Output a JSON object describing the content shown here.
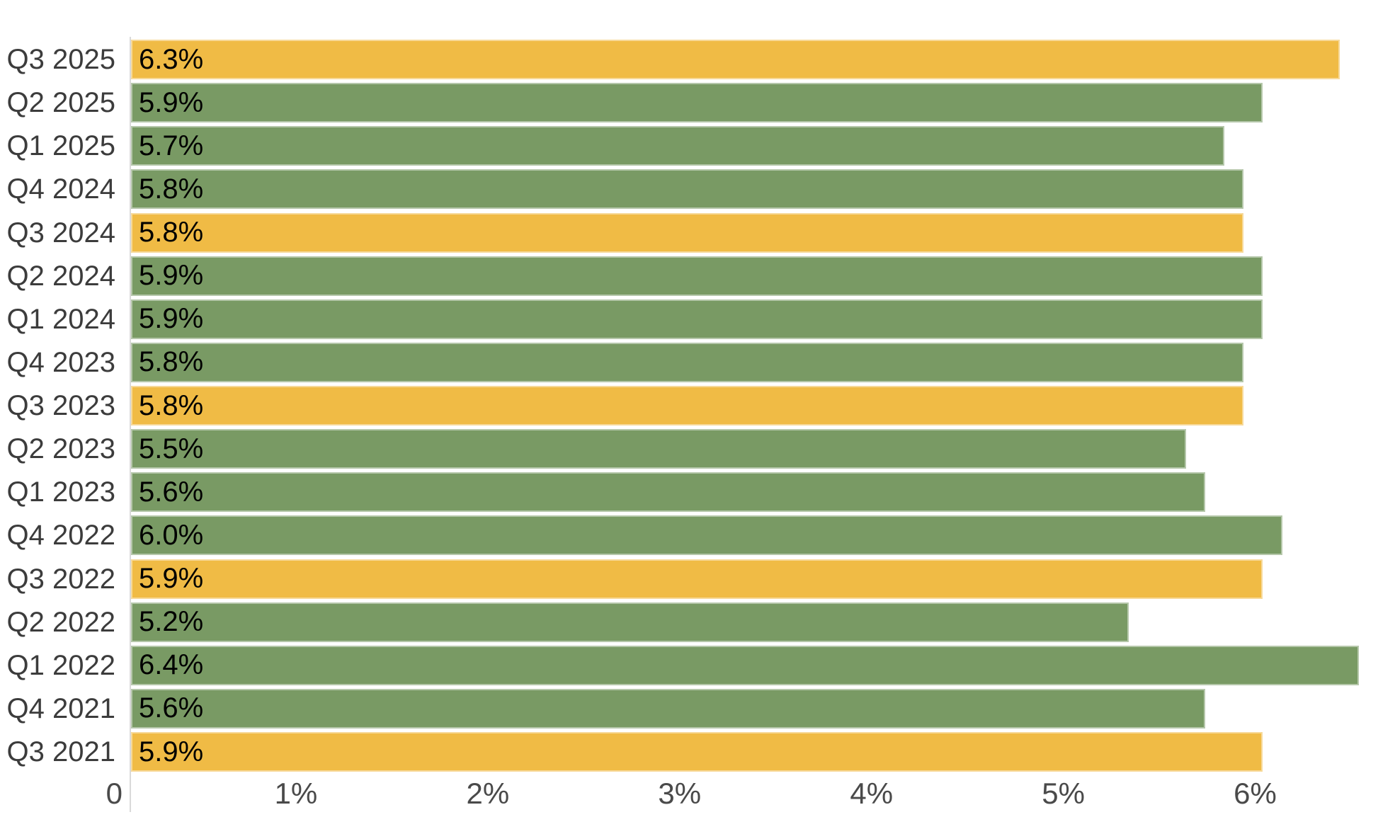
{
  "chart_data": {
    "type": "bar",
    "orientation": "horizontal",
    "title": "",
    "xlabel": "",
    "ylabel": "",
    "xlim": [
      0,
      6.5
    ],
    "grid": false,
    "legend_position": "none",
    "categories": [
      "Q3 2025",
      "Q2 2025",
      "Q1 2025",
      "Q4 2024",
      "Q3 2024",
      "Q2 2024",
      "Q1 2024",
      "Q4 2023",
      "Q3 2023",
      "Q2 2023",
      "Q1 2023",
      "Q4 2022",
      "Q3 2022",
      "Q2 2022",
      "Q1 2022",
      "Q4 2021",
      "Q3 2021"
    ],
    "values": [
      6.3,
      5.9,
      5.7,
      5.8,
      5.8,
      5.9,
      5.9,
      5.8,
      5.8,
      5.5,
      5.6,
      6.0,
      5.9,
      5.2,
      6.4,
      5.6,
      5.9
    ],
    "bars": [
      {
        "category": "Q3 2025",
        "value": 6.3,
        "label": "6.3%",
        "highlighted": true
      },
      {
        "category": "Q2 2025",
        "value": 5.9,
        "label": "5.9%",
        "highlighted": false
      },
      {
        "category": "Q1 2025",
        "value": 5.7,
        "label": "5.7%",
        "highlighted": false
      },
      {
        "category": "Q4 2024",
        "value": 5.8,
        "label": "5.8%",
        "highlighted": false
      },
      {
        "category": "Q3 2024",
        "value": 5.8,
        "label": "5.8%",
        "highlighted": true
      },
      {
        "category": "Q2 2024",
        "value": 5.9,
        "label": "5.9%",
        "highlighted": false
      },
      {
        "category": "Q1 2024",
        "value": 5.9,
        "label": "5.9%",
        "highlighted": false
      },
      {
        "category": "Q4 2023",
        "value": 5.8,
        "label": "5.8%",
        "highlighted": false
      },
      {
        "category": "Q3 2023",
        "value": 5.8,
        "label": "5.8%",
        "highlighted": true
      },
      {
        "category": "Q2 2023",
        "value": 5.5,
        "label": "5.5%",
        "highlighted": false
      },
      {
        "category": "Q1 2023",
        "value": 5.6,
        "label": "5.6%",
        "highlighted": false
      },
      {
        "category": "Q4 2022",
        "value": 6.0,
        "label": "6.0%",
        "highlighted": false
      },
      {
        "category": "Q3 2022",
        "value": 5.9,
        "label": "5.9%",
        "highlighted": true
      },
      {
        "category": "Q2 2022",
        "value": 5.2,
        "label": "5.2%",
        "highlighted": false
      },
      {
        "category": "Q1 2022",
        "value": 6.4,
        "label": "6.4%",
        "highlighted": false
      },
      {
        "category": "Q4 2021",
        "value": 5.6,
        "label": "5.6%",
        "highlighted": false
      },
      {
        "category": "Q3 2021",
        "value": 5.9,
        "label": "5.9%",
        "highlighted": true
      }
    ],
    "x_ticks": [
      {
        "label": "0",
        "value": 0
      },
      {
        "label": "1%",
        "value": 1
      },
      {
        "label": "2%",
        "value": 2
      },
      {
        "label": "3%",
        "value": 3
      },
      {
        "label": "4%",
        "value": 4
      },
      {
        "label": "5%",
        "value": 5
      },
      {
        "label": "6%",
        "value": 6
      }
    ],
    "colors": {
      "bar_default": "#799A64",
      "bar_highlight": "#F0BB45"
    }
  },
  "styles": {
    "background": "#FFFFFF",
    "axis_line_color": "#D9D9D9",
    "category_label_color": "#3C3C3C",
    "tick_label_color": "#4A4A4A",
    "value_label_color": "#000000"
  }
}
